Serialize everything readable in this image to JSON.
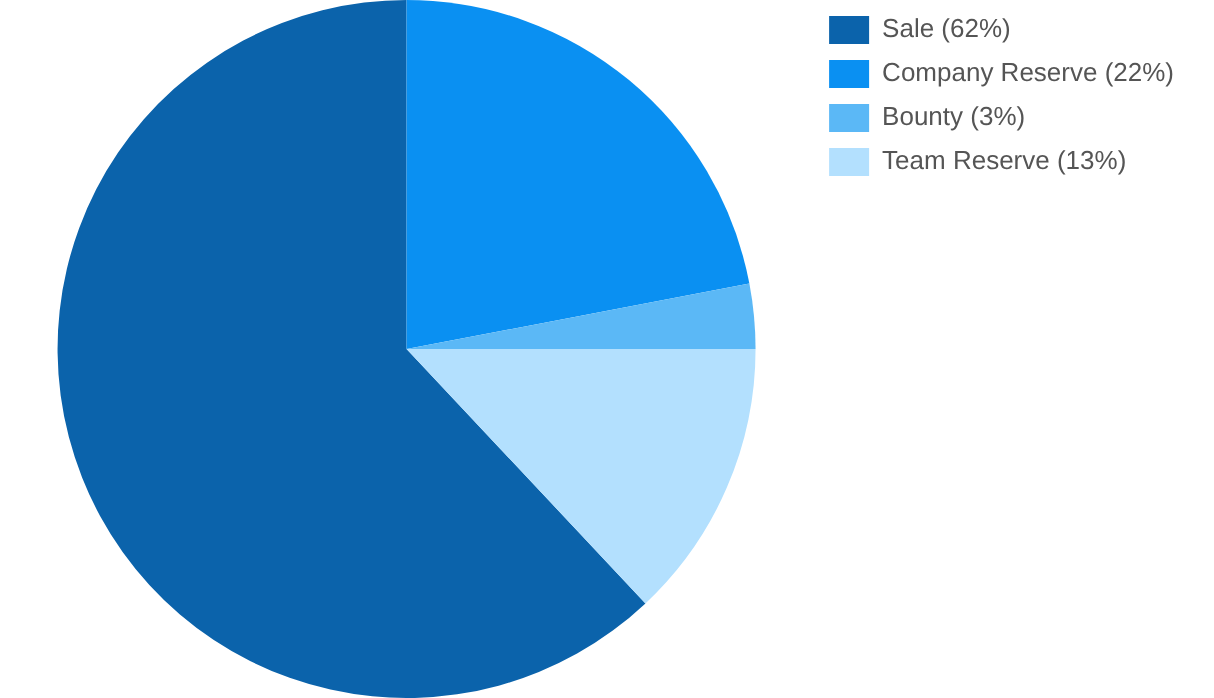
{
  "chart_data": {
    "type": "pie",
    "categories": [
      "Sale (62%)",
      "Company Reserve (22%)",
      "Bounty (3%)",
      "Team Reserve (13%)"
    ],
    "values": [
      62,
      22,
      3,
      13
    ],
    "colors": [
      "#0b63ab",
      "#0a90f2",
      "#5bb8f6",
      "#b3e0fe"
    ],
    "legend": "top right"
  }
}
